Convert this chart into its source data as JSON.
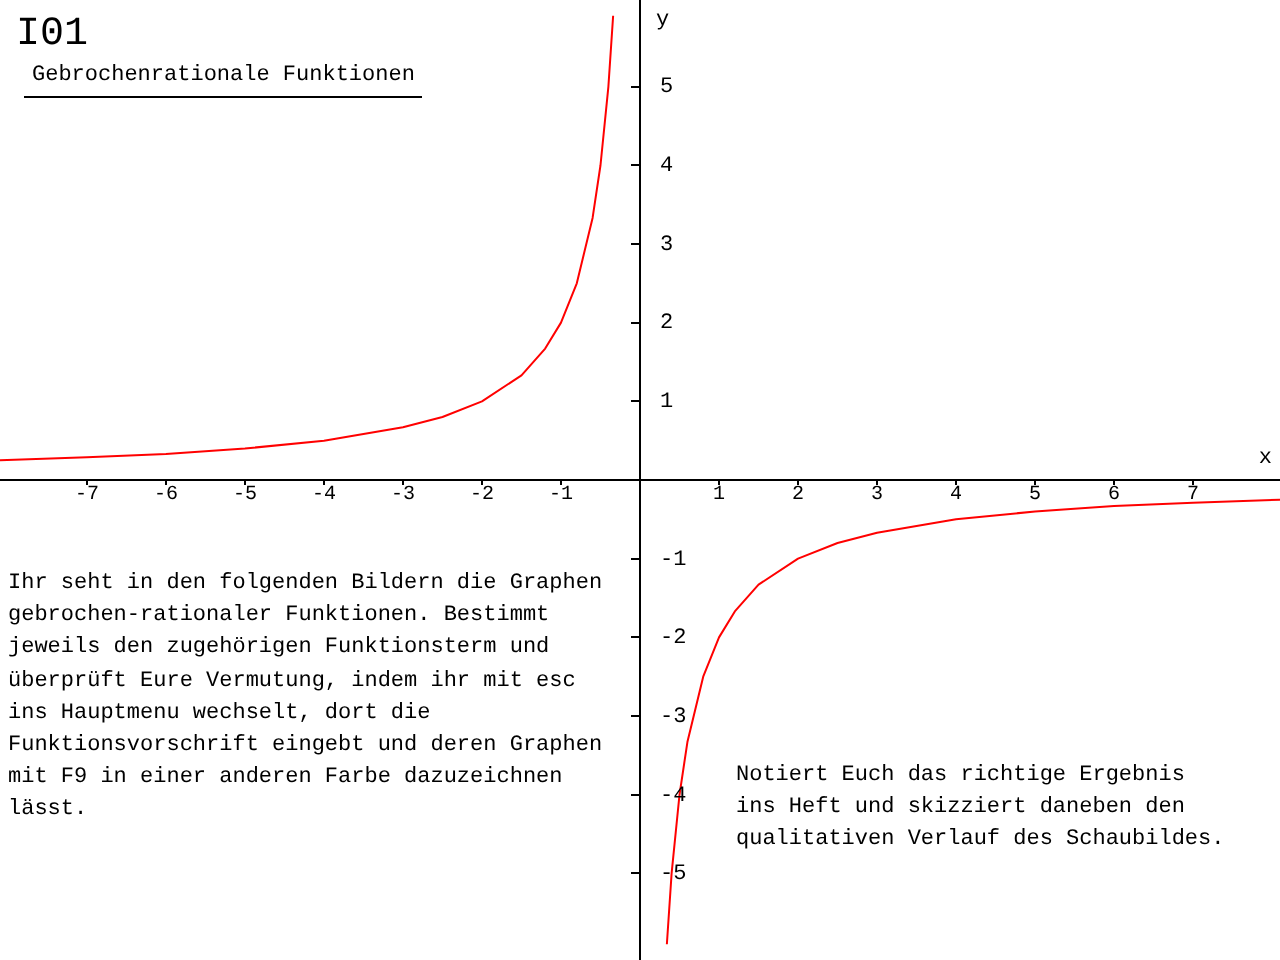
{
  "chart_data": {
    "type": "line",
    "title": "I01",
    "subtitle": "Gebrochenrationale Funktionen",
    "xlabel": "x",
    "ylabel": "y",
    "x": [
      -8.1,
      -7,
      -6,
      -5,
      -4,
      -3,
      -2.5,
      -2,
      -1.5,
      -1.2,
      -1,
      -0.8,
      -0.6,
      -0.5,
      -0.4,
      -0.34,
      0,
      0.34,
      0.4,
      0.5,
      0.6,
      0.8,
      1,
      1.2,
      1.5,
      2,
      2.5,
      3,
      4,
      5,
      6,
      7,
      8.1
    ],
    "series": [
      {
        "color": "#ff0000",
        "values": [
          0.25,
          0.29,
          0.33,
          0.4,
          0.5,
          0.67,
          0.8,
          1,
          1.33,
          1.67,
          2,
          2.5,
          3.33,
          4,
          5,
          5.9,
          null,
          -5.9,
          -5,
          -4,
          -3.33,
          -2.5,
          -2,
          -1.67,
          -1.33,
          -1,
          -0.8,
          -0.67,
          -0.5,
          -0.4,
          -0.33,
          -0.29,
          -0.25
        ]
      }
    ],
    "xlim": [
      -8.1,
      8.1
    ],
    "ylim": [
      -6.1,
      6.1
    ],
    "xticks": [
      -7,
      -6,
      -5,
      -4,
      -3,
      -2,
      -1,
      1,
      2,
      3,
      4,
      5,
      6,
      7
    ],
    "yticks": [
      -5,
      -4,
      -3,
      -2,
      -1,
      1,
      2,
      3,
      4,
      5
    ],
    "grid": false,
    "legend": false,
    "marker": "none",
    "line_style": "solid",
    "annotations": [
      "Ihr seht in den folgenden Bildern die Graphen gebrochen-rationaler Funktionen. Bestimmt jeweils den zugehörigen Funktionsterm und überprüft Eure Vermutung, indem ihr mit esc ins Hauptmenu wechselt, dort die Funktionsvorschrift eingebt und deren Graphen mit F9 in einer anderen Farbe dazuzeichnen lässt.",
      "Notiert Euch das richtige Ergebnis ins Heft und skizziert daneben den qualitativen Verlauf des Schaubildes."
    ]
  }
}
